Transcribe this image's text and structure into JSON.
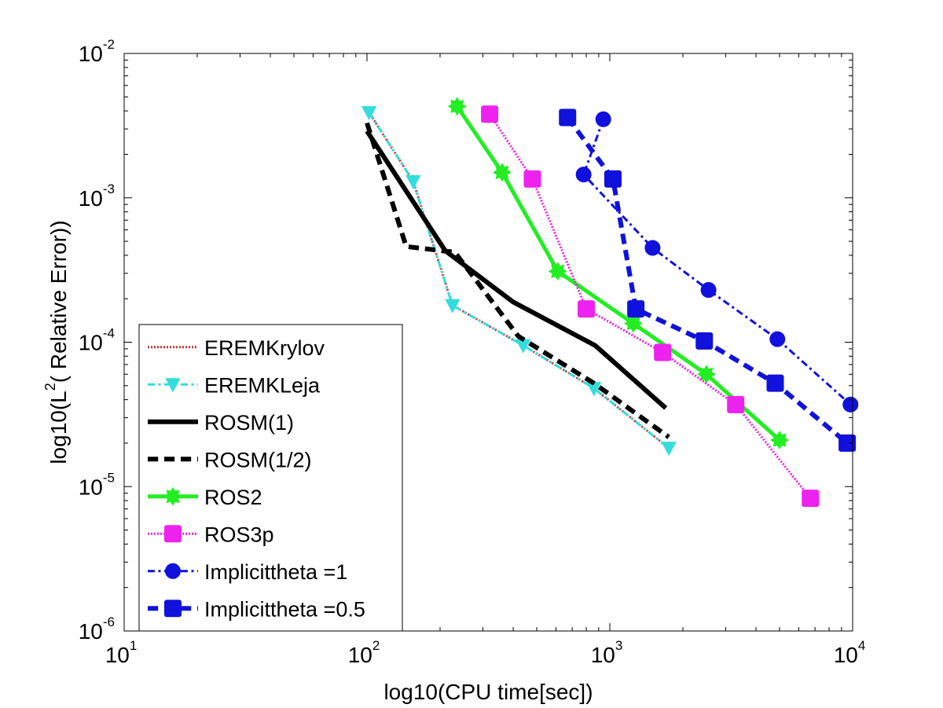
{
  "chart_data": {
    "type": "line",
    "xlabel": "log10(CPU time[sec])",
    "ylabel": {
      "prefix": "log10(L",
      "sup": "2",
      "suffix": "( Relative Error))"
    },
    "xscale": "log",
    "yscale": "log",
    "xlim": [
      10,
      10000
    ],
    "ylim": [
      1e-06,
      0.01
    ],
    "x_ticks": [
      {
        "value": 10,
        "base": "10",
        "exp": "1"
      },
      {
        "value": 100,
        "base": "10",
        "exp": "2"
      },
      {
        "value": 1000,
        "base": "10",
        "exp": "3"
      },
      {
        "value": 10000,
        "base": "10",
        "exp": "4"
      }
    ],
    "y_ticks": [
      {
        "value": 1e-06,
        "base": "10",
        "exp": "-6"
      },
      {
        "value": 1e-05,
        "base": "10",
        "exp": "-5"
      },
      {
        "value": 0.0001,
        "base": "10",
        "exp": "-4"
      },
      {
        "value": 0.001,
        "base": "10",
        "exp": "-3"
      },
      {
        "value": 0.01,
        "base": "10",
        "exp": "-2"
      }
    ],
    "grid": false,
    "legend_position": "bottom-left",
    "series": [
      {
        "name": "EREMKrylov",
        "color": "#cc3333",
        "dash": "dotted",
        "marker": "none",
        "width": 3,
        "x": [
          102,
          155,
          225,
          440,
          860,
          1750
        ],
        "y": [
          0.0039,
          0.0013,
          0.00018,
          9.5e-05,
          4.8e-05,
          1.85e-05
        ]
      },
      {
        "name": "EREMKLeja",
        "color": "#33dddd",
        "dash": "dashdot",
        "marker": "triangle-down",
        "width": 3,
        "x": [
          102,
          155,
          225,
          440,
          860,
          1750
        ],
        "y": [
          0.0039,
          0.0013,
          0.00018,
          9.5e-05,
          4.8e-05,
          1.85e-05
        ]
      },
      {
        "name": "ROSM(1)",
        "color": "#000000",
        "dash": "solid",
        "marker": "none",
        "width": 6,
        "x": [
          100,
          210,
          400,
          870,
          1700
        ],
        "y": [
          0.0029,
          0.00043,
          0.00019,
          9.5e-05,
          3.5e-05
        ]
      },
      {
        "name": "ROSM(1/2)",
        "color": "#000000",
        "dash": "dashed",
        "marker": "none",
        "width": 6,
        "x": [
          100,
          145,
          230,
          420,
          860,
          1750
        ],
        "y": [
          0.0033,
          0.00046,
          0.00042,
          0.00011,
          5.2e-05,
          2.2e-05
        ]
      },
      {
        "name": "ROS2",
        "color": "#22ee22",
        "dash": "solid",
        "marker": "star",
        "width": 5,
        "x": [
          235,
          360,
          610,
          1250,
          2500,
          5000
        ],
        "y": [
          0.0043,
          0.0015,
          0.00031,
          0.000135,
          6e-05,
          2.1e-05
        ]
      },
      {
        "name": "ROS3p",
        "color": "#ee22ee",
        "dash": "dotted",
        "marker": "square",
        "width": 3,
        "x": [
          320,
          480,
          800,
          1650,
          3300,
          6700
        ],
        "y": [
          0.0038,
          0.00135,
          0.00017,
          8.5e-05,
          3.7e-05,
          8.3e-06
        ]
      },
      {
        "name": "Implicittheta =1",
        "color": "#1111dd",
        "dash": "dashdot",
        "marker": "circle",
        "width": 3,
        "x": [
          940,
          780,
          1500,
          2550,
          4900,
          9800
        ],
        "y": [
          0.0035,
          0.00145,
          0.00045,
          0.00023,
          0.000105,
          3.7e-05
        ]
      },
      {
        "name": "Implicittheta =0.5",
        "color": "#1111dd",
        "dash": "dashed",
        "marker": "square",
        "width": 6,
        "x": [
          670,
          1030,
          1280,
          2450,
          4800,
          9500
        ],
        "y": [
          0.0036,
          0.00135,
          0.00017,
          0.000102,
          5.2e-05,
          2e-05
        ]
      }
    ]
  }
}
